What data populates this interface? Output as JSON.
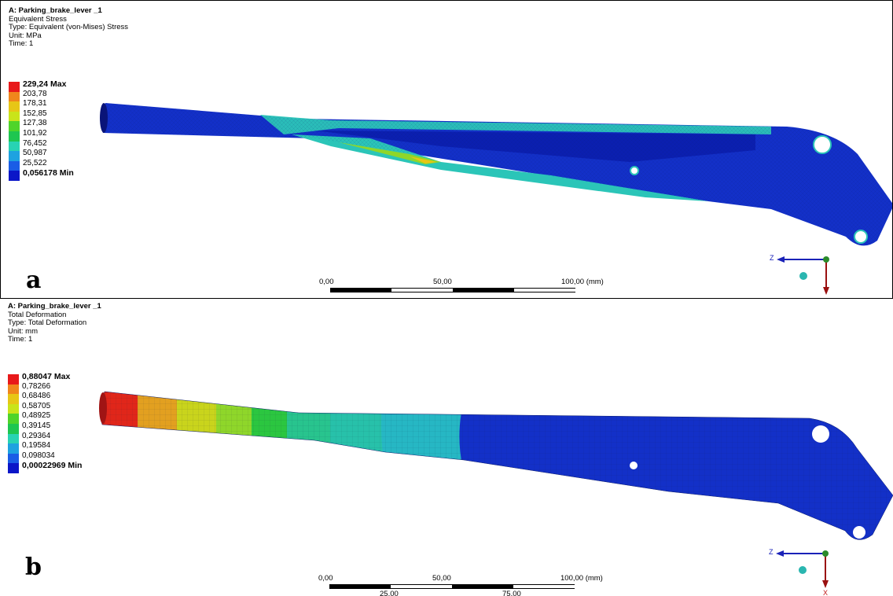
{
  "panels": [
    {
      "id": "a",
      "label": "a",
      "header": {
        "title": "A: Parking_brake_lever _1",
        "result": "Equivalent Stress",
        "type": "Type: Equivalent (von-Mises) Stress",
        "unit": "Unit: MPa",
        "time": "Time: 1"
      },
      "legend": [
        "229,24 Max",
        "203,78",
        "178,31",
        "152,85",
        "127,38",
        "101,92",
        "76,452",
        "50,987",
        "25,522",
        "0,056178 Min"
      ],
      "scale": {
        "ticks": [
          "0,00",
          "50,00",
          "100,00 (mm)"
        ],
        "sub_ticks": []
      }
    },
    {
      "id": "b",
      "label": "b",
      "header": {
        "title": "A: Parking_brake_lever _1",
        "result": "Total Deformation",
        "type": "Type: Total Deformation",
        "unit": "Unit: mm",
        "time": "Time: 1"
      },
      "legend": [
        "0,88047 Max",
        "0,78266",
        "0,68486",
        "0,58705",
        "0,48925",
        "0,39145",
        "0,29364",
        "0,19584",
        "0,098034",
        "0,00022969 Min"
      ],
      "scale": {
        "ticks": [
          "0,00",
          "50,00",
          "100,00 (mm)"
        ],
        "sub_ticks": [
          "25,00",
          "75,00"
        ]
      }
    }
  ],
  "legend_colors": [
    "#e8191a",
    "#f0861c",
    "#e7c616",
    "#c9e41a",
    "#4fd42a",
    "#1ec650",
    "#28d3b3",
    "#1ea2e0",
    "#1a5de6",
    "#0b16c8"
  ],
  "triad": {
    "z_label": "Z",
    "x_label": "X"
  }
}
